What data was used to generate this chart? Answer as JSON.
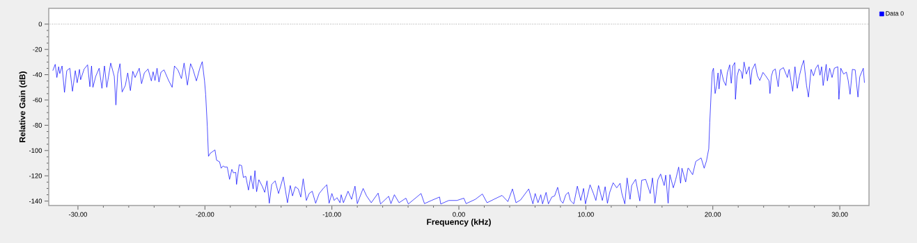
{
  "chart_data": {
    "type": "line",
    "xlabel": "Frequency (kHz)",
    "ylabel": "Relative Gain (dB)",
    "x": [
      -31.98,
      -31.79,
      -31.66,
      -31.52,
      -31.43,
      -31.25,
      -31.06,
      -30.88,
      -30.64,
      -30.43,
      -30.21,
      -30.06,
      -29.88,
      -29.79,
      -29.51,
      -29.24,
      -29.06,
      -28.93,
      -28.82,
      -28.6,
      -28.33,
      -28.11,
      -27.91,
      -27.73,
      -27.42,
      -27.14,
      -27.01,
      -26.87,
      -26.69,
      -26.52,
      -26.27,
      -26.08,
      -25.87,
      -25.68,
      -25.5,
      -25.17,
      -24.99,
      -24.77,
      -24.48,
      -24.22,
      -24.08,
      -23.93,
      -23.77,
      -23.62,
      -23.46,
      -23.22,
      -22.86,
      -22.58,
      -22.4,
      -22.13,
      -21.85,
      -21.64,
      -21.38,
      -21.13,
      -20.94,
      -20.67,
      -20.4,
      -20.21,
      -20.03,
      -19.94,
      -19.81,
      -19.72,
      -19.58,
      -19.21,
      -19.08,
      -18.85,
      -18.72,
      -18.57,
      -18.43,
      -18.24,
      -18.06,
      -17.88,
      -17.75,
      -17.57,
      -17.51,
      -17.3,
      -17.11,
      -16.97,
      -16.78,
      -16.57,
      -16.38,
      -16.2,
      -16.06,
      -15.93,
      -15.75,
      -15.47,
      -15.29,
      -15.11,
      -14.93,
      -14.74,
      -14.47,
      -14.2,
      -13.83,
      -13.5,
      -13.28,
      -13.1,
      -12.88,
      -12.65,
      -12.45,
      -12.26,
      -12.01,
      -11.79,
      -11.55,
      -11.28,
      -11.0,
      -10.64,
      -10.4,
      -10.22,
      -10.0,
      -9.82,
      -9.6,
      -9.36,
      -9.27,
      -9.09,
      -8.73,
      -8.45,
      -8.18,
      -8.0,
      -7.54,
      -7.27,
      -6.9,
      -6.36,
      -6.17,
      -5.53,
      -5.35,
      -5.08,
      -4.71,
      -4.17,
      -3.98,
      -2.98,
      -2.71,
      -2.16,
      -1.52,
      -1.43,
      -0.79,
      -0.15,
      0.39,
      0.57,
      1.3,
      1.85,
      2.22,
      2.76,
      3.4,
      3.86,
      4.22,
      4.5,
      4.86,
      5.5,
      5.83,
      6.01,
      6.23,
      6.45,
      6.59,
      6.87,
      7.05,
      7.32,
      7.54,
      7.78,
      8.01,
      8.2,
      8.42,
      8.63,
      8.78,
      9.05,
      9.33,
      9.6,
      9.82,
      9.97,
      10.33,
      10.6,
      10.79,
      11.0,
      11.3,
      11.52,
      11.7,
      11.88,
      12.15,
      12.43,
      12.7,
      12.83,
      13.07,
      13.25,
      13.48,
      13.61,
      13.92,
      14.25,
      14.4,
      14.71,
      15.07,
      15.25,
      15.44,
      15.67,
      15.89,
      16.17,
      16.29,
      16.48,
      16.62,
      16.89,
      17.08,
      17.31,
      17.46,
      17.57,
      17.86,
      18.04,
      18.08,
      18.41,
      18.66,
      19.08,
      19.32,
      19.5,
      19.68,
      19.76,
      19.87,
      19.96,
      20.05,
      20.18,
      20.3,
      20.41,
      20.49,
      20.63,
      20.85,
      21.03,
      21.14,
      21.33,
      21.45,
      21.58,
      21.73,
      21.78,
      21.91,
      22.06,
      22.24,
      22.33,
      22.46,
      22.64,
      22.86,
      22.97,
      23.09,
      23.33,
      23.51,
      23.7,
      23.95,
      24.19,
      24.43,
      24.5,
      24.61,
      24.74,
      24.92,
      25.15,
      25.28,
      25.56,
      25.87,
      26.01,
      26.29,
      26.47,
      26.65,
      26.83,
      27.01,
      27.16,
      27.38,
      27.53,
      27.74,
      27.93,
      28.11,
      28.29,
      28.44,
      28.57,
      28.69,
      28.93,
      29.02,
      29.2,
      29.39,
      29.57,
      29.84,
      29.93,
      30.08,
      30.3,
      30.52,
      30.66,
      30.81,
      30.99,
      31.21,
      31.43,
      31.57,
      31.85,
      31.94
    ],
    "series": [
      {
        "name": "Data 0",
        "color": "#0000ff",
        "values": [
          -36.8,
          -31.8,
          -42.2,
          -33.7,
          -39.1,
          -33.1,
          -54.0,
          -36.8,
          -34.9,
          -53.1,
          -36.8,
          -46.4,
          -35.8,
          -44.0,
          -35.5,
          -32.2,
          -49.5,
          -33.1,
          -50.0,
          -41.3,
          -34.9,
          -50.8,
          -33.1,
          -50.0,
          -30.8,
          -41.3,
          -64.0,
          -39.5,
          -31.3,
          -53.7,
          -48.6,
          -38.6,
          -52.6,
          -37.3,
          -42.2,
          -34.9,
          -47.1,
          -38.6,
          -35.5,
          -44.9,
          -37.7,
          -44.6,
          -34.9,
          -45.8,
          -38.0,
          -36.2,
          -44.6,
          -50.0,
          -33.1,
          -36.2,
          -43.1,
          -30.8,
          -48.2,
          -31.3,
          -35.8,
          -44.9,
          -34.9,
          -29.7,
          -44.9,
          -55.8,
          -81.3,
          -104.6,
          -102.2,
          -99.5,
          -107.7,
          -108.9,
          -114.0,
          -112.2,
          -113.1,
          -113.1,
          -122.8,
          -114.9,
          -117.7,
          -117.3,
          -126.8,
          -111.3,
          -111.9,
          -121.3,
          -120.4,
          -131.3,
          -119.9,
          -130.4,
          -115.9,
          -132.6,
          -123.1,
          -128.6,
          -133.1,
          -124.0,
          -141.7,
          -126.8,
          -124.0,
          -134.0,
          -120.9,
          -141.3,
          -127.7,
          -135.9,
          -128.6,
          -130.4,
          -136.8,
          -122.4,
          -139.5,
          -134.0,
          -132.2,
          -141.7,
          -134.0,
          -129.5,
          -127.1,
          -141.7,
          -134.0,
          -139.5,
          -137.3,
          -141.3,
          -135.0,
          -141.3,
          -132.2,
          -138.6,
          -128.2,
          -142.0,
          -130.0,
          -135.9,
          -141.3,
          -133.7,
          -142.3,
          -136.2,
          -142.0,
          -135.0,
          -141.3,
          -137.7,
          -142.3,
          -134.0,
          -142.0,
          -139.5,
          -136.8,
          -142.3,
          -139.5,
          -139.5,
          -137.7,
          -142.0,
          -138.6,
          -134.4,
          -141.3,
          -138.6,
          -135.5,
          -140.4,
          -130.4,
          -141.3,
          -139.1,
          -130.4,
          -142.2,
          -134.0,
          -141.3,
          -135.0,
          -142.2,
          -133.1,
          -142.2,
          -136.8,
          -135.9,
          -129.1,
          -139.5,
          -141.7,
          -135.0,
          -133.1,
          -139.5,
          -142.2,
          -128.2,
          -139.5,
          -130.0,
          -142.2,
          -127.1,
          -134.0,
          -139.5,
          -127.7,
          -139.5,
          -128.6,
          -141.7,
          -133.1,
          -125.5,
          -129.5,
          -125.9,
          -133.7,
          -142.2,
          -121.7,
          -138.6,
          -127.7,
          -122.8,
          -139.9,
          -123.5,
          -122.8,
          -134.0,
          -121.7,
          -141.7,
          -123.1,
          -118.6,
          -127.7,
          -119.5,
          -141.7,
          -119.1,
          -129.5,
          -122.8,
          -113.1,
          -125.9,
          -114.0,
          -124.9,
          -114.0,
          -114.0,
          -119.1,
          -108.6,
          -105.9,
          -114.0,
          -108.2,
          -98.6,
          -77.7,
          -54.0,
          -37.7,
          -34.9,
          -54.9,
          -48.6,
          -38.6,
          -51.3,
          -35.8,
          -44.9,
          -48.6,
          -38.6,
          -32.2,
          -46.8,
          -33.1,
          -30.4,
          -59.5,
          -41.3,
          -35.5,
          -37.7,
          -43.1,
          -30.0,
          -39.5,
          -33.7,
          -47.7,
          -36.2,
          -31.3,
          -40.9,
          -44.6,
          -38.2,
          -41.3,
          -44.9,
          -54.9,
          -41.3,
          -36.8,
          -35.5,
          -49.5,
          -36.2,
          -34.4,
          -42.2,
          -35.8,
          -53.1,
          -33.7,
          -50.8,
          -40.4,
          -33.1,
          -28.6,
          -48.6,
          -57.7,
          -35.8,
          -40.9,
          -34.9,
          -32.2,
          -40.4,
          -33.7,
          -48.6,
          -31.8,
          -44.9,
          -34.9,
          -42.2,
          -34.9,
          -33.7,
          -59.5,
          -34.9,
          -39.5,
          -38.0,
          -44.6,
          -55.5,
          -35.8,
          -36.2,
          -57.7,
          -41.7,
          -34.9,
          -46.4
        ]
      }
    ],
    "xlim": [
      -32.3,
      32.3
    ],
    "ylim": [
      -143.5,
      12.5
    ],
    "xticks": [
      {
        "value": -30,
        "label": "-30.00"
      },
      {
        "value": -20,
        "label": "-20.00"
      },
      {
        "value": -10,
        "label": "-10.00"
      },
      {
        "value": 0,
        "label": "0.00"
      },
      {
        "value": 10,
        "label": "10.00"
      },
      {
        "value": 20,
        "label": "20.00"
      },
      {
        "value": 30,
        "label": "30.00"
      }
    ],
    "yticks": [
      -140,
      -120,
      -100,
      -80,
      -60,
      -40,
      -20,
      0
    ],
    "ref_lines": [
      {
        "axis": "y",
        "value": 0,
        "color": "#000000",
        "line_style": "dotted"
      }
    ],
    "legend": "top right",
    "marker": "none",
    "line_style": "solid"
  }
}
